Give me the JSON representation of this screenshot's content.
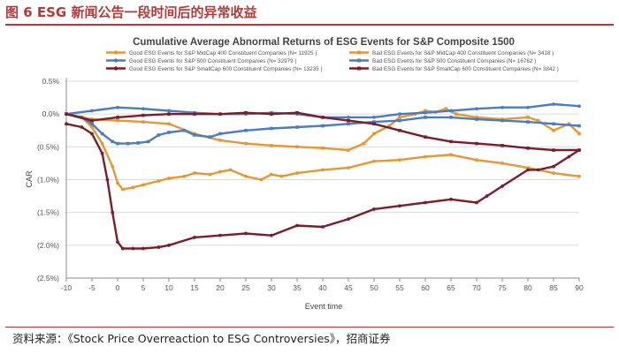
{
  "figure": {
    "title": "图 6 ESG 新闻公告一段时间后的异常收益",
    "source": "资料来源：《Stock Price Overreaction to ESG Controversies》，招商证券"
  },
  "colors": {
    "orange": "#e39833",
    "blue": "#4a7cbf",
    "maroon": "#7b1d2a",
    "title_red": "#b23a3a",
    "grid": "#dcdcdc",
    "axis": "#888888"
  },
  "chart_data": {
    "type": "line",
    "title": "Cumulative Average Abnormal Returns of ESG Events for S&P Composite 1500",
    "xlabel": "Event time",
    "ylabel": "CAR",
    "xlim": [
      -10,
      90
    ],
    "ylim": [
      -2.5,
      0.5
    ],
    "x_ticks": [
      -10,
      -5,
      0,
      5,
      10,
      15,
      20,
      25,
      30,
      35,
      40,
      45,
      50,
      55,
      60,
      65,
      70,
      75,
      80,
      85,
      90
    ],
    "y_ticks": [
      0.5,
      0,
      -0.5,
      -1.0,
      -1.5,
      -2.0,
      -2.5
    ],
    "y_tick_labels": [
      "0.5%",
      "0.0%",
      "(0.5%)",
      "(1.0%)",
      "(1.5%)",
      "(2.0%)",
      "(2.5%)"
    ],
    "legend_position": "top",
    "series": [
      {
        "name": "Good ESG Events for S&P MidCap 400 Constituent Companies (N= 11925 )",
        "color": "orange",
        "marker": "round",
        "x": [
          -10,
          -7,
          -5,
          -3,
          -1,
          0,
          1,
          3,
          5,
          8,
          10,
          13,
          15,
          18,
          20,
          22,
          25,
          28,
          30,
          32,
          35,
          40,
          45,
          50,
          55,
          60,
          65,
          70,
          75,
          80,
          85,
          90
        ],
        "y": [
          0.0,
          -0.05,
          -0.2,
          -0.45,
          -0.8,
          -1.05,
          -1.15,
          -1.12,
          -1.08,
          -1.02,
          -0.98,
          -0.95,
          -0.9,
          -0.92,
          -0.88,
          -0.85,
          -0.95,
          -1.0,
          -0.92,
          -0.95,
          -0.9,
          -0.85,
          -0.82,
          -0.72,
          -0.7,
          -0.65,
          -0.62,
          -0.7,
          -0.75,
          -0.82,
          -0.9,
          -0.95
        ]
      },
      {
        "name": "Bad ESG Events for S&P MidCap 400 Constituent Companies (N= 3418 )",
        "color": "orange",
        "marker": "square",
        "x": [
          -10,
          -5,
          0,
          5,
          10,
          15,
          20,
          25,
          30,
          35,
          40,
          45,
          48,
          50,
          53,
          55,
          58,
          60,
          62,
          64,
          66,
          70,
          75,
          80,
          82,
          85,
          88,
          90
        ],
        "y": [
          0.0,
          -0.08,
          -0.1,
          -0.12,
          -0.15,
          -0.3,
          -0.4,
          -0.45,
          -0.48,
          -0.5,
          -0.52,
          -0.55,
          -0.45,
          -0.3,
          -0.18,
          -0.05,
          0.0,
          0.05,
          0.03,
          0.08,
          0.0,
          -0.05,
          -0.08,
          -0.05,
          -0.1,
          -0.25,
          -0.15,
          -0.3
        ]
      },
      {
        "name": "Good ESG Events for S&P 500 Constituent Companies (N= 32979 )",
        "color": "blue",
        "marker": "round",
        "x": [
          -10,
          -5,
          0,
          5,
          10,
          15,
          20,
          25,
          30,
          35,
          40,
          45,
          50,
          55,
          60,
          65,
          70,
          75,
          80,
          85,
          90
        ],
        "y": [
          0.0,
          0.05,
          0.1,
          0.08,
          0.05,
          0.02,
          0.0,
          0.0,
          0.02,
          0.0,
          -0.05,
          -0.05,
          -0.05,
          0.0,
          0.02,
          0.05,
          0.08,
          0.1,
          0.1,
          0.15,
          0.12
        ]
      },
      {
        "name": "Bad ESG Events for S&P 500 Constituent Companies (N= 16762 )",
        "color": "blue",
        "marker": "square",
        "x": [
          -10,
          -7,
          -5,
          -3,
          -1,
          0,
          2,
          4,
          6,
          8,
          10,
          13,
          15,
          18,
          20,
          25,
          30,
          35,
          40,
          45,
          50,
          55,
          60,
          65,
          70,
          75,
          80,
          85,
          90
        ],
        "y": [
          0.0,
          -0.05,
          -0.15,
          -0.3,
          -0.42,
          -0.45,
          -0.45,
          -0.44,
          -0.42,
          -0.32,
          -0.28,
          -0.25,
          -0.32,
          -0.35,
          -0.3,
          -0.25,
          -0.22,
          -0.2,
          -0.18,
          -0.15,
          -0.12,
          -0.1,
          -0.05,
          -0.05,
          -0.08,
          -0.1,
          -0.12,
          -0.15,
          -0.18
        ]
      },
      {
        "name": "Good ESG Events for S&P SmallCap 600 Constituent Companies (N= 13235 )",
        "color": "maroon",
        "marker": "round",
        "x": [
          -10,
          -7,
          -5,
          -3,
          -2,
          -1,
          0,
          1,
          3,
          5,
          8,
          10,
          15,
          20,
          25,
          30,
          35,
          40,
          45,
          50,
          55,
          60,
          65,
          70,
          72,
          75,
          80,
          82,
          85,
          88,
          90
        ],
        "y": [
          -0.15,
          -0.2,
          -0.3,
          -0.6,
          -1.0,
          -1.5,
          -1.95,
          -2.05,
          -2.05,
          -2.05,
          -2.03,
          -2.0,
          -1.88,
          -1.85,
          -1.82,
          -1.85,
          -1.7,
          -1.72,
          -1.6,
          -1.45,
          -1.4,
          -1.35,
          -1.3,
          -1.35,
          -1.25,
          -1.1,
          -0.85,
          -0.85,
          -0.8,
          -0.65,
          -0.55
        ]
      },
      {
        "name": "Bad ESG Events for S&P SmallCap 600 Constituent Companies (N= 3842 )",
        "color": "maroon",
        "marker": "square",
        "x": [
          -10,
          -5,
          0,
          5,
          10,
          15,
          20,
          25,
          30,
          35,
          40,
          45,
          50,
          55,
          60,
          65,
          70,
          75,
          80,
          85,
          90
        ],
        "y": [
          0.0,
          -0.1,
          -0.05,
          -0.02,
          0.0,
          0.0,
          0.0,
          0.02,
          0.0,
          0.02,
          -0.05,
          -0.1,
          -0.15,
          -0.25,
          -0.35,
          -0.42,
          -0.45,
          -0.48,
          -0.52,
          -0.55,
          -0.55
        ]
      }
    ]
  }
}
